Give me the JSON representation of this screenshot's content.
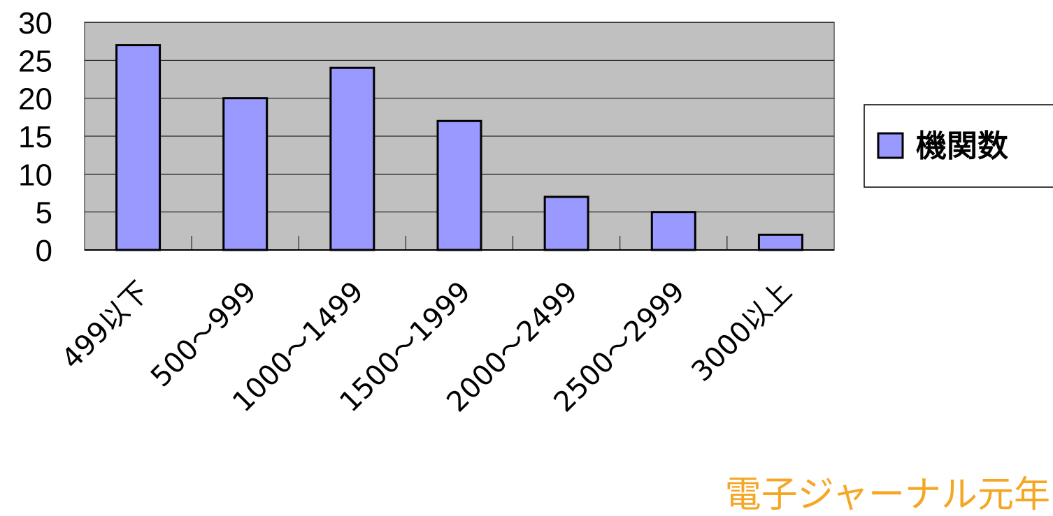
{
  "chart_data": {
    "type": "bar",
    "categories": [
      "499以下",
      "500～999",
      "1000～1499",
      "1500～1999",
      "2000～2499",
      "2500～2999",
      "3000以上"
    ],
    "series": [
      {
        "name": "機関数",
        "values": [
          27,
          20,
          24,
          17,
          7,
          5,
          2
        ]
      }
    ],
    "title": "",
    "xlabel": "",
    "ylabel": "",
    "ylim": [
      0,
      30
    ],
    "yticks": [
      "0",
      "5",
      "10",
      "15",
      "20",
      "25",
      "30"
    ],
    "grid": true,
    "legend": "right"
  },
  "colors": {
    "plot_background": "#c0c0c0",
    "bar_fill": "#9999ff",
    "bar_stroke": "#000000",
    "gridline": "#000000",
    "footer_text": "#f5a623"
  },
  "footer": {
    "text": "電子ジャーナル元年"
  }
}
